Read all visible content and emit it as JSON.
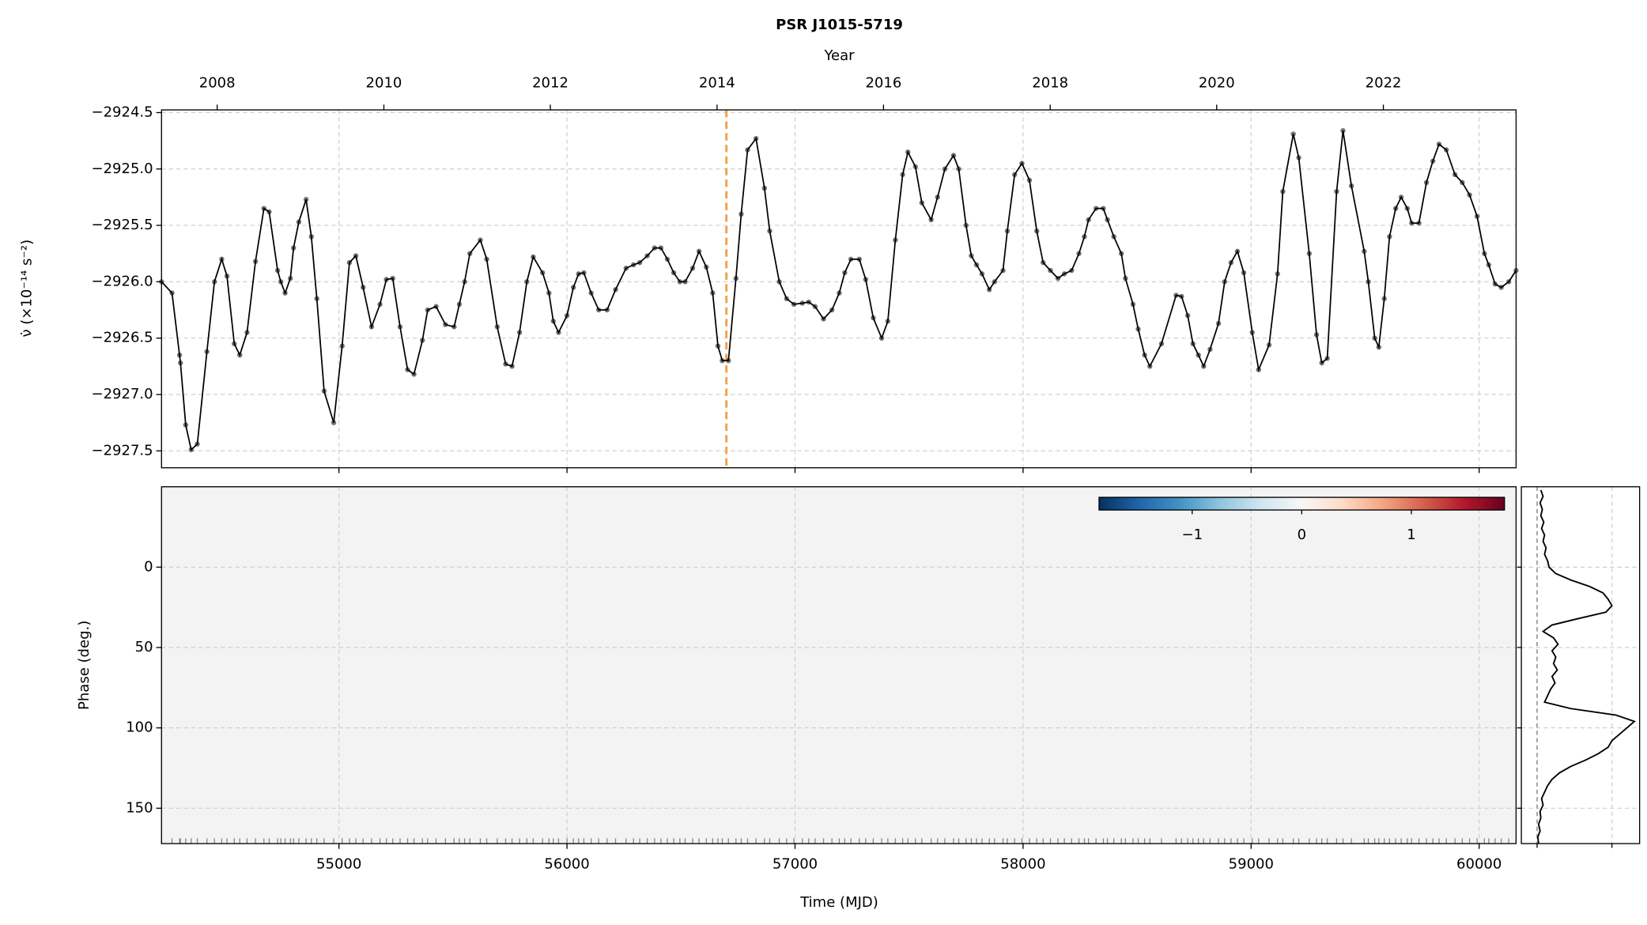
{
  "chart_data": [
    {
      "type": "line",
      "title": "PSR J1015-5719",
      "x2_label": "Year",
      "y_label": "ν̇ (×10⁻¹⁴ s⁻²)",
      "x": [
        54222,
        54268,
        54301,
        54305,
        54328,
        54352,
        54379,
        54421,
        54454,
        54486,
        54509,
        54541,
        54565,
        54597,
        54634,
        54671,
        54694,
        54731,
        54745,
        54764,
        54787,
        54801,
        54824,
        54856,
        54879,
        54903,
        54935,
        54977,
        55014,
        55046,
        55074,
        55106,
        55143,
        55180,
        55208,
        55236,
        55268,
        55301,
        55329,
        55366,
        55389,
        55426,
        55467,
        55505,
        55528,
        55551,
        55574,
        55620,
        55648,
        55694,
        55731,
        55759,
        55792,
        55824,
        55852,
        55893,
        55921,
        55940,
        55963,
        56000,
        56028,
        56051,
        56074,
        56106,
        56139,
        56176,
        56213,
        56259,
        56292,
        56319,
        56352,
        56384,
        56412,
        56440,
        56468,
        56495,
        56518,
        56551,
        56579,
        56611,
        56639,
        56662,
        56681,
        56708,
        56741,
        56764,
        56792,
        56829,
        56866,
        56889,
        56931,
        56963,
        56995,
        57032,
        57060,
        57088,
        57125,
        57162,
        57194,
        57218,
        57245,
        57282,
        57310,
        57343,
        57380,
        57407,
        57440,
        57472,
        57495,
        57528,
        57556,
        57597,
        57625,
        57657,
        57695,
        57718,
        57750,
        57773,
        57796,
        57820,
        57852,
        57875,
        57912,
        57931,
        57963,
        57995,
        58028,
        58060,
        58088,
        58120,
        58153,
        58181,
        58213,
        58245,
        58269,
        58287,
        58320,
        58352,
        58370,
        58398,
        58431,
        58449,
        58482,
        58505,
        58533,
        58556,
        58607,
        58671,
        58695,
        58722,
        58745,
        58769,
        58792,
        58820,
        58857,
        58884,
        58912,
        58940,
        58968,
        59005,
        59033,
        59079,
        59116,
        59139,
        59185,
        59209,
        59255,
        59287,
        59310,
        59334,
        59375,
        59403,
        59440,
        59496,
        59514,
        59542,
        59560,
        59584,
        59607,
        59634,
        59658,
        59685,
        59704,
        59736,
        59769,
        59797,
        59824,
        59856,
        59894,
        59926,
        59958,
        59991,
        60023,
        60042,
        60070,
        60097,
        60130,
        60162
      ],
      "series": [
        {
          "color": "#000000",
          "values": [
            -2926.0,
            -2926.1,
            -2926.65,
            -2926.72,
            -2927.27,
            -2927.49,
            -2927.44,
            -2926.62,
            -2926.0,
            -2925.8,
            -2925.95,
            -2926.55,
            -2926.65,
            -2926.45,
            -2925.82,
            -2925.35,
            -2925.38,
            -2925.9,
            -2926.0,
            -2926.1,
            -2925.97,
            -2925.7,
            -2925.47,
            -2925.27,
            -2925.6,
            -2926.15,
            -2926.97,
            -2927.25,
            -2926.57,
            -2925.83,
            -2925.77,
            -2926.05,
            -2926.4,
            -2926.2,
            -2925.98,
            -2925.97,
            -2926.4,
            -2926.78,
            -2926.82,
            -2926.52,
            -2926.25,
            -2926.22,
            -2926.38,
            -2926.4,
            -2926.2,
            -2926.0,
            -2925.75,
            -2925.63,
            -2925.8,
            -2926.4,
            -2926.73,
            -2926.75,
            -2926.45,
            -2926.0,
            -2925.78,
            -2925.92,
            -2926.1,
            -2926.35,
            -2926.45,
            -2926.3,
            -2926.05,
            -2925.93,
            -2925.92,
            -2926.1,
            -2926.25,
            -2926.25,
            -2926.07,
            -2925.88,
            -2925.85,
            -2925.83,
            -2925.77,
            -2925.7,
            -2925.7,
            -2925.8,
            -2925.92,
            -2926.0,
            -2926.0,
            -2925.88,
            -2925.73,
            -2925.87,
            -2926.1,
            -2926.57,
            -2926.7,
            -2926.7,
            -2925.97,
            -2925.4,
            -2924.83,
            -2924.73,
            -2925.17,
            -2925.55,
            -2926.0,
            -2926.15,
            -2926.2,
            -2926.19,
            -2926.18,
            -2926.22,
            -2926.33,
            -2926.25,
            -2926.1,
            -2925.92,
            -2925.8,
            -2925.8,
            -2925.98,
            -2926.32,
            -2926.5,
            -2926.35,
            -2925.63,
            -2925.05,
            -2924.85,
            -2924.98,
            -2925.3,
            -2925.45,
            -2925.25,
            -2925.0,
            -2924.88,
            -2925.0,
            -2925.5,
            -2925.77,
            -2925.85,
            -2925.93,
            -2926.07,
            -2926.0,
            -2925.9,
            -2925.55,
            -2925.05,
            -2924.95,
            -2925.1,
            -2925.55,
            -2925.83,
            -2925.9,
            -2925.97,
            -2925.93,
            -2925.9,
            -2925.75,
            -2925.6,
            -2925.45,
            -2925.35,
            -2925.35,
            -2925.45,
            -2925.6,
            -2925.75,
            -2925.97,
            -2926.2,
            -2926.42,
            -2926.65,
            -2926.75,
            -2926.55,
            -2926.12,
            -2926.13,
            -2926.3,
            -2926.55,
            -2926.65,
            -2926.75,
            -2926.6,
            -2926.37,
            -2926.0,
            -2925.83,
            -2925.73,
            -2925.92,
            -2926.45,
            -2926.78,
            -2926.56,
            -2925.93,
            -2925.2,
            -2924.69,
            -2924.9,
            -2925.75,
            -2926.47,
            -2926.72,
            -2926.68,
            -2925.2,
            -2924.66,
            -2925.15,
            -2925.73,
            -2926.0,
            -2926.5,
            -2926.58,
            -2926.15,
            -2925.6,
            -2925.35,
            -2925.25,
            -2925.35,
            -2925.48,
            -2925.48,
            -2925.12,
            -2924.93,
            -2924.78,
            -2924.83,
            -2925.05,
            -2925.12,
            -2925.23,
            -2925.42,
            -2925.75,
            -2925.85,
            -2926.02,
            -2926.05,
            -2926.0,
            -2925.9
          ]
        }
      ],
      "xlim": [
        54222,
        60162
      ],
      "xticks": [
        55000,
        56000,
        57000,
        58000,
        59000,
        60000
      ],
      "x2ticks": [
        {
          "value": 54466,
          "label": "2008"
        },
        {
          "value": 55197,
          "label": "2010"
        },
        {
          "value": 55927,
          "label": "2012"
        },
        {
          "value": 56658,
          "label": "2014"
        },
        {
          "value": 57388,
          "label": "2016"
        },
        {
          "value": 58119,
          "label": "2018"
        },
        {
          "value": 58849,
          "label": "2020"
        },
        {
          "value": 59580,
          "label": "2022"
        }
      ],
      "ylim": [
        -2927.65,
        -2924.476
      ],
      "yticks": [
        {
          "value": -2924.5,
          "label": "−2924.5"
        },
        {
          "value": -2925.0,
          "label": "−2925.0"
        },
        {
          "value": -2925.5,
          "label": "−2925.5"
        },
        {
          "value": -2926.0,
          "label": "−2926.0"
        },
        {
          "value": -2926.5,
          "label": "−2926.5"
        },
        {
          "value": -2927.0,
          "label": "−2927.0"
        },
        {
          "value": -2927.5,
          "label": "−2927.5"
        }
      ],
      "grid": true,
      "vlines": [
        {
          "x": 56699,
          "color": "#f5a04a"
        }
      ]
    },
    {
      "type": "heatmap",
      "x_label": "Time (MJD)",
      "y_label": "Phase (deg.)",
      "xlim": [
        54222,
        60162
      ],
      "xticks": [
        55000,
        56000,
        57000,
        58000,
        59000,
        60000
      ],
      "ylim": [
        172,
        -50
      ],
      "yticks": [
        0,
        50,
        100,
        150
      ],
      "grid": true,
      "colorbar": {
        "clim": [
          -1.85,
          1.85
        ],
        "ticks": [
          {
            "value": -1,
            "label": "−1"
          },
          0,
          1
        ]
      }
    },
    {
      "type": "profile",
      "x": [
        -48,
        -44,
        -40,
        -36,
        -32,
        -28,
        -24,
        -20,
        -16,
        -12,
        -8,
        -4,
        0,
        4,
        8,
        12,
        16,
        20,
        24,
        28,
        32,
        36,
        40,
        44,
        48,
        52,
        56,
        60,
        64,
        68,
        72,
        76,
        80,
        84,
        88,
        92,
        96,
        100,
        104,
        108,
        112,
        116,
        120,
        124,
        128,
        132,
        136,
        140,
        144,
        148,
        152,
        156,
        160,
        164,
        168,
        172
      ],
      "values": [
        0.05,
        0.08,
        0.04,
        0.07,
        0.05,
        0.09,
        0.06,
        0.1,
        0.08,
        0.12,
        0.1,
        0.14,
        0.16,
        0.25,
        0.45,
        0.7,
        0.88,
        0.95,
        1.0,
        0.92,
        0.55,
        0.2,
        0.08,
        0.22,
        0.28,
        0.2,
        0.25,
        0.22,
        0.27,
        0.2,
        0.24,
        0.18,
        0.14,
        0.1,
        0.45,
        1.05,
        1.3,
        1.2,
        1.1,
        1.0,
        0.95,
        0.82,
        0.65,
        0.45,
        0.3,
        0.2,
        0.14,
        0.1,
        0.06,
        0.08,
        0.04,
        0.05,
        0.02,
        0.04,
        0.01,
        0.02
      ],
      "color": "#000000",
      "xlim": [
        -0.21,
        1.37
      ],
      "xticks": [
        0,
        1
      ],
      "ylim": [
        172,
        -50
      ],
      "yticks": [
        0,
        50,
        100,
        150
      ],
      "grid": true
    }
  ]
}
